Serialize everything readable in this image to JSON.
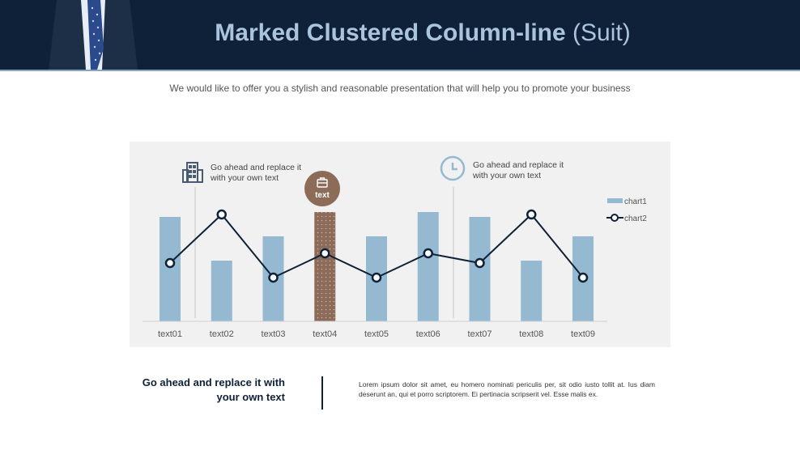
{
  "header": {
    "title_bold": "Marked Clustered Column-line",
    "title_light": "(Suit)"
  },
  "subtitle": "We would like to offer you a stylish and reasonable presentation that will help you to promote your business",
  "callouts": [
    {
      "icon": "building-icon",
      "text_line1": "Go ahead and replace it",
      "text_line2": "with your own text"
    },
    {
      "icon": "clock-icon",
      "text_line1": "Go ahead and replace it",
      "text_line2": "with your own text"
    }
  ],
  "highlight_badge": {
    "icon": "briefcase-icon",
    "label": "text"
  },
  "colors": {
    "header_bg": "#0f2138",
    "bar": "#94b9d1",
    "bar_highlight": "#8c6b58",
    "line": "#0f2138",
    "panel_bg": "#f1f1f1"
  },
  "chart_data": {
    "type": "bar",
    "categories": [
      "text01",
      "text02",
      "text03",
      "text04",
      "text05",
      "text06",
      "text07",
      "text08",
      "text09"
    ],
    "series": [
      {
        "name": "chart1",
        "type": "bar",
        "values": [
          4.3,
          2.5,
          3.5,
          4.5,
          3.5,
          4.5,
          4.3,
          2.5,
          3.5
        ]
      },
      {
        "name": "chart2",
        "type": "line",
        "values": [
          2.4,
          4.4,
          1.8,
          2.8,
          1.8,
          2.8,
          2.4,
          4.4,
          1.8
        ]
      }
    ],
    "highlight_category": "text04",
    "ylim": [
      0,
      5
    ],
    "grid": false,
    "legend": "right"
  },
  "bottom": {
    "heading_line1": "Go ahead and replace it with",
    "heading_line2": "your own text",
    "body": "Lorem ipsum dolor sit amet, eu homero nominati periculis per, sit odio iusto tollit at. Ius diam deserunt an, qui et porro scriptorem. Ei pertinacia scripserit vel. Esse malis ex."
  }
}
